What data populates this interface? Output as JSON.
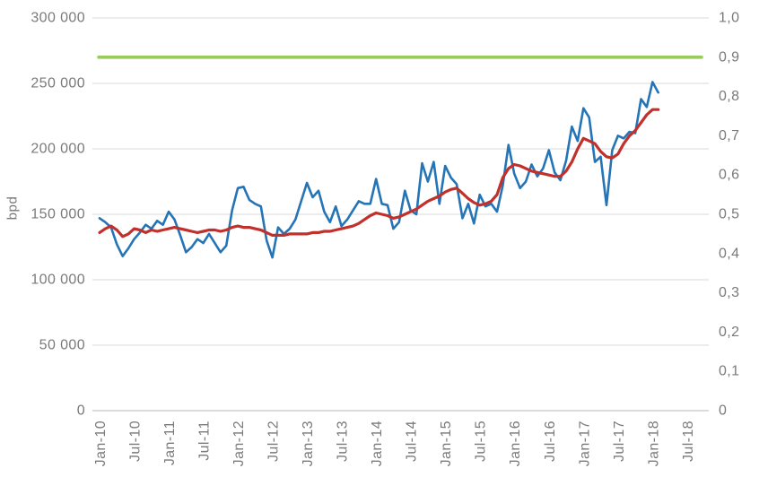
{
  "chart_data": {
    "type": "line",
    "title": "",
    "ylabel": "bpd",
    "grid": "horizontal",
    "legend": "none",
    "x_axis": {
      "interval": "monthly",
      "tick_labels": [
        "Jan-10",
        "Jul-10",
        "Jan-11",
        "Jul-11",
        "Jan-12",
        "Jul-12",
        "Jan-13",
        "Jul-13",
        "Jan-14",
        "Jul-14",
        "Jan-15",
        "Jul-15",
        "Jan-16",
        "Jul-16",
        "Jan-17",
        "Jul-17",
        "Jan-18",
        "Jul-18"
      ]
    },
    "y_axis_left": {
      "label": "bpd",
      "min": 0,
      "max": 300000,
      "step": 50000,
      "tick_labels": [
        "300 000",
        "250 000",
        "200 000",
        "150 000",
        "100 000",
        "50 000",
        "0"
      ]
    },
    "y_axis_right": {
      "min": 0,
      "max": 1.0,
      "step": 0.1,
      "tick_labels": [
        "1,0",
        "0,9",
        "0,8",
        "0,7",
        "0,6",
        "0,5",
        "0,4",
        "0,3",
        "0,2",
        "0,1",
        "0"
      ]
    },
    "series": [
      {
        "id": "blue-monthly-series",
        "color": "#2474B6",
        "axis": "left",
        "start": "Jan-10",
        "interval": "monthly",
        "values": [
          147000,
          144000,
          140000,
          127000,
          118000,
          124000,
          131000,
          136000,
          142000,
          139000,
          145000,
          142000,
          152000,
          146000,
          134000,
          121000,
          125000,
          131000,
          128000,
          135000,
          128000,
          121000,
          126000,
          153000,
          170000,
          171000,
          161000,
          158000,
          156000,
          130000,
          117000,
          140000,
          135000,
          139000,
          146000,
          160000,
          174000,
          163000,
          168000,
          152000,
          144000,
          156000,
          141000,
          146000,
          153000,
          160000,
          158000,
          158000,
          177000,
          158000,
          157000,
          139000,
          144000,
          168000,
          153000,
          150000,
          189000,
          175000,
          190000,
          158000,
          187000,
          178000,
          173000,
          147000,
          158000,
          143000,
          165000,
          156000,
          158000,
          152000,
          172000,
          203000,
          181000,
          170000,
          175000,
          188000,
          179000,
          185000,
          199000,
          182000,
          176000,
          191000,
          217000,
          206000,
          231000,
          224000,
          190000,
          194000,
          157000,
          199000,
          210000,
          208000,
          213000,
          212000,
          238000,
          232000,
          251000,
          243000
        ]
      },
      {
        "id": "red-smoothed-series",
        "color": "#C1302B",
        "axis": "left",
        "start": "Jan-10",
        "interval": "monthly",
        "values": [
          136000,
          139000,
          141000,
          138000,
          133000,
          135000,
          139000,
          138000,
          136000,
          138000,
          137000,
          138000,
          139000,
          140000,
          139000,
          138000,
          137000,
          136000,
          137000,
          138000,
          138000,
          137000,
          138000,
          140000,
          141000,
          140000,
          140000,
          139000,
          138000,
          136000,
          134000,
          134000,
          134000,
          135000,
          135000,
          135000,
          135000,
          136000,
          136000,
          137000,
          137000,
          138000,
          139000,
          140000,
          141000,
          143000,
          146000,
          149000,
          151000,
          150000,
          149000,
          147000,
          148000,
          150000,
          152000,
          154000,
          157000,
          160000,
          162000,
          164000,
          167000,
          169000,
          170000,
          166000,
          162000,
          159000,
          157000,
          158000,
          160000,
          165000,
          178000,
          185000,
          188000,
          187000,
          185000,
          183000,
          182000,
          181000,
          180000,
          179000,
          179000,
          183000,
          190000,
          200000,
          208000,
          206000,
          204000,
          198000,
          194000,
          193000,
          196000,
          204000,
          210000,
          214000,
          220000,
          226000,
          230000,
          230000
        ]
      },
      {
        "id": "green-reference-line",
        "color": "#9ACB5F",
        "axis": "right",
        "constant": 0.9
      }
    ]
  },
  "colors": {
    "grid": "#D9D9D9",
    "axis_line": "#C6C6C6",
    "tick_text": "#7A7A7A",
    "background": "#FFFFFF"
  }
}
